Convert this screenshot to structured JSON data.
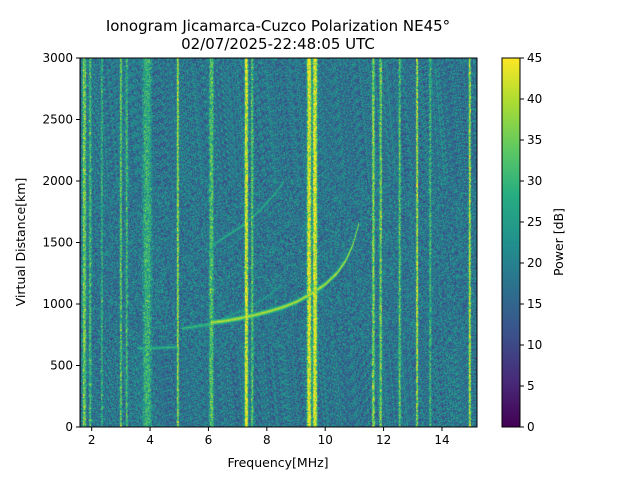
{
  "chart_data": {
    "type": "heatmap",
    "title": "Ionogram Jicamarca-Cuzco Polarization NE45°",
    "subtitle": "02/07/2025-22:48:05 UTC",
    "xlabel": "Frequency[MHz]",
    "ylabel": "Virtual Distance[km]",
    "xlim": [
      1.6,
      15.2
    ],
    "ylim": [
      0,
      3000
    ],
    "xticks": [
      2,
      4,
      6,
      8,
      10,
      12,
      14
    ],
    "yticks": [
      0,
      500,
      1000,
      1500,
      2000,
      2500,
      3000
    ],
    "colorbar": {
      "label": "Power [dB]",
      "range": [
        0,
        45
      ],
      "ticks": [
        0,
        5,
        10,
        15,
        20,
        25,
        30,
        35,
        40,
        45
      ],
      "colormap": "viridis"
    },
    "background_power_db": 18,
    "interference_lines": [
      {
        "freq": 1.75,
        "power": 36,
        "width": 0.08
      },
      {
        "freq": 1.95,
        "power": 30,
        "width": 0.06
      },
      {
        "freq": 2.35,
        "power": 27,
        "width": 0.05
      },
      {
        "freq": 3.0,
        "power": 33,
        "width": 0.05
      },
      {
        "freq": 3.2,
        "power": 30,
        "width": 0.05
      },
      {
        "freq": 3.9,
        "power": 29,
        "width": 0.2
      },
      {
        "freq": 4.95,
        "power": 38,
        "width": 0.05
      },
      {
        "freq": 6.1,
        "power": 32,
        "width": 0.1
      },
      {
        "freq": 7.3,
        "power": 44,
        "width": 0.08
      },
      {
        "freq": 7.5,
        "power": 32,
        "width": 0.06
      },
      {
        "freq": 9.45,
        "power": 45,
        "width": 0.1
      },
      {
        "freq": 9.65,
        "power": 45,
        "width": 0.1
      },
      {
        "freq": 11.65,
        "power": 38,
        "width": 0.06
      },
      {
        "freq": 11.9,
        "power": 36,
        "width": 0.06
      },
      {
        "freq": 12.55,
        "power": 34,
        "width": 0.05
      },
      {
        "freq": 13.15,
        "power": 40,
        "width": 0.05
      },
      {
        "freq": 13.6,
        "power": 30,
        "width": 0.05
      },
      {
        "freq": 14.95,
        "power": 42,
        "width": 0.05
      }
    ],
    "traces": [
      {
        "name": "",
        "power": 42,
        "width_km": 25,
        "points": [
          [
            6.1,
            850
          ],
          [
            6.5,
            860
          ],
          [
            7.0,
            880
          ],
          [
            7.5,
            905
          ],
          [
            8.0,
            935
          ],
          [
            8.5,
            970
          ],
          [
            9.0,
            1015
          ],
          [
            9.5,
            1080
          ],
          [
            10.0,
            1160
          ],
          [
            10.4,
            1250
          ],
          [
            10.7,
            1350
          ],
          [
            10.95,
            1480
          ],
          [
            11.15,
            1650
          ]
        ]
      },
      {
        "name": "",
        "power": 32,
        "width_km": 20,
        "points": [
          [
            5.1,
            800
          ],
          [
            5.5,
            815
          ],
          [
            6.0,
            835
          ],
          [
            6.1,
            850
          ]
        ]
      },
      {
        "name": "",
        "power": 31,
        "width_km": 18,
        "points": [
          [
            3.6,
            640
          ],
          [
            4.0,
            640
          ],
          [
            4.5,
            645
          ],
          [
            5.0,
            650
          ]
        ]
      },
      {
        "name": "",
        "power": 30,
        "width_km": 18,
        "points": [
          [
            6.1,
            1470
          ],
          [
            6.6,
            1550
          ],
          [
            7.2,
            1640
          ],
          [
            7.8,
            1770
          ],
          [
            8.3,
            1900
          ],
          [
            8.6,
            2000
          ]
        ]
      },
      {
        "name": "",
        "power": 27,
        "width_km": 15,
        "points": [
          [
            6.5,
            880
          ],
          [
            7.2,
            950
          ],
          [
            8.0,
            1060
          ],
          [
            8.5,
            1150
          ]
        ]
      }
    ]
  }
}
